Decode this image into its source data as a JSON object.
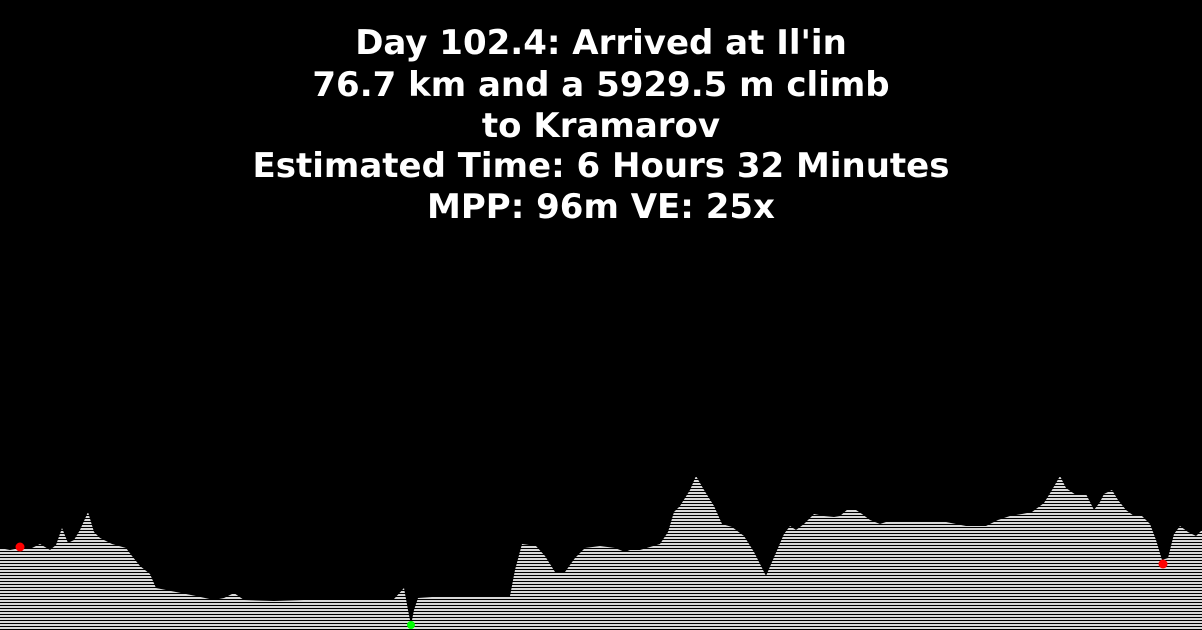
{
  "header": {
    "title": "Day 102.4: Arrived at Il'in",
    "distance_line": "76.7 km and a 5929.5 m climb",
    "destination_line": "to Kramarov",
    "estimate_line": "Estimated Time: 6 Hours 32 Minutes",
    "scale_line": "MPP: 96m VE: 25x"
  },
  "colors": {
    "background": "#000000",
    "text": "#ffffff",
    "terrain": "#d8d8d8",
    "marker_start": "#ff0000",
    "marker_end": "#ff0000",
    "marker_low": "#00ff00"
  }
}
